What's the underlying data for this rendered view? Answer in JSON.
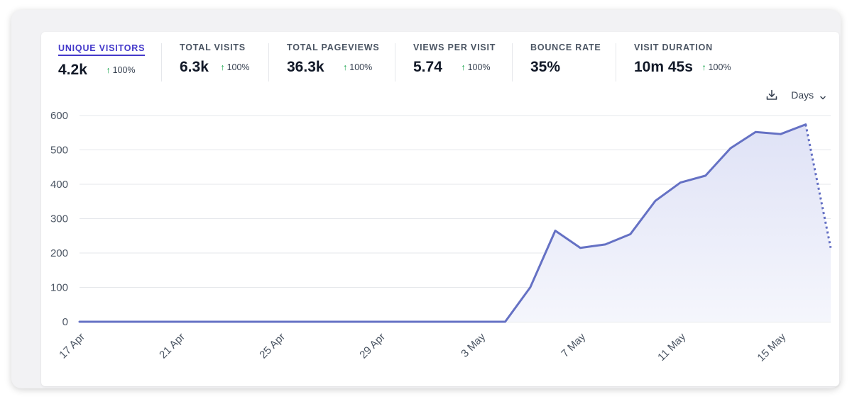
{
  "metrics": [
    {
      "label": "UNIQUE VISITORS",
      "value": "4.2k",
      "change": "100%",
      "active": true
    },
    {
      "label": "TOTAL VISITS",
      "value": "6.3k",
      "change": "100%"
    },
    {
      "label": "TOTAL PAGEVIEWS",
      "value": "36.3k",
      "change": "100%"
    },
    {
      "label": "VIEWS PER VISIT",
      "value": "5.74",
      "change": "100%"
    },
    {
      "label": "BOUNCE RATE",
      "value": "35%",
      "change": ""
    },
    {
      "label": "VISIT DURATION",
      "value": "10m 45s",
      "change": "100%"
    }
  ],
  "controls": {
    "download_icon": "download-icon",
    "interval_label": "Days",
    "interval_icon": "chevron-down-icon"
  },
  "colors": {
    "line": "#6571c4",
    "fill": "#eceefa",
    "grid": "#e5e7eb",
    "active_tab": "#4338ca",
    "positive": "#16a34a"
  },
  "chart_data": {
    "type": "area",
    "series_name": "Unique visitors",
    "x": [
      "17 Apr",
      "18 Apr",
      "19 Apr",
      "20 Apr",
      "21 Apr",
      "22 Apr",
      "23 Apr",
      "24 Apr",
      "25 Apr",
      "26 Apr",
      "27 Apr",
      "28 Apr",
      "29 Apr",
      "30 Apr",
      "1 May",
      "2 May",
      "3 May",
      "4 May",
      "5 May",
      "6 May",
      "7 May",
      "8 May",
      "9 May",
      "10 May",
      "11 May",
      "12 May",
      "13 May",
      "14 May",
      "15 May",
      "16 May",
      "17 May"
    ],
    "values": [
      0,
      0,
      0,
      0,
      0,
      0,
      0,
      0,
      0,
      0,
      0,
      0,
      0,
      0,
      0,
      0,
      0,
      0,
      100,
      265,
      215,
      225,
      255,
      352,
      405,
      425,
      505,
      552,
      546,
      574,
      215
    ],
    "dotted_last_segment": true,
    "xticks": [
      "17 Apr",
      "21 Apr",
      "25 Apr",
      "29 Apr",
      "3 May",
      "7 May",
      "11 May",
      "15 May"
    ],
    "yticks": [
      0,
      100,
      200,
      300,
      400,
      500,
      600
    ],
    "ylim": [
      0,
      600
    ],
    "grid": true
  }
}
